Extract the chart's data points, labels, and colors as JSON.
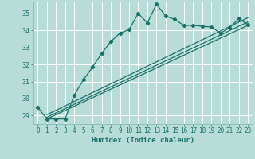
{
  "title": "",
  "xlabel": "Humidex (Indice chaleur)",
  "xlim": [
    -0.5,
    23.5
  ],
  "ylim": [
    28.5,
    35.7
  ],
  "xticks": [
    0,
    1,
    2,
    3,
    4,
    5,
    6,
    7,
    8,
    9,
    10,
    11,
    12,
    13,
    14,
    15,
    16,
    17,
    18,
    19,
    20,
    21,
    22,
    23
  ],
  "yticks": [
    29,
    30,
    31,
    32,
    33,
    34,
    35
  ],
  "bg_color": "#b8ddd8",
  "grid_color": "#ffffff",
  "line_color": "#1a7068",
  "series1_x": [
    0,
    1,
    2,
    3,
    4,
    5,
    6,
    7,
    8,
    9,
    10,
    11,
    12,
    13,
    14,
    15,
    16,
    17,
    18,
    19,
    20,
    21,
    22,
    23
  ],
  "series1_y": [
    29.5,
    28.8,
    28.8,
    28.8,
    30.2,
    31.1,
    31.85,
    32.65,
    33.35,
    33.85,
    34.05,
    35.0,
    34.45,
    35.55,
    34.85,
    34.65,
    34.3,
    34.3,
    34.25,
    34.2,
    33.85,
    34.15,
    34.7,
    34.35
  ],
  "series2_x": [
    1,
    23
  ],
  "series2_y": [
    28.8,
    34.3
  ],
  "series3_x": [
    1,
    23
  ],
  "series3_y": [
    28.9,
    34.5
  ],
  "series4_x": [
    1,
    23
  ],
  "series4_y": [
    29.05,
    34.75
  ]
}
